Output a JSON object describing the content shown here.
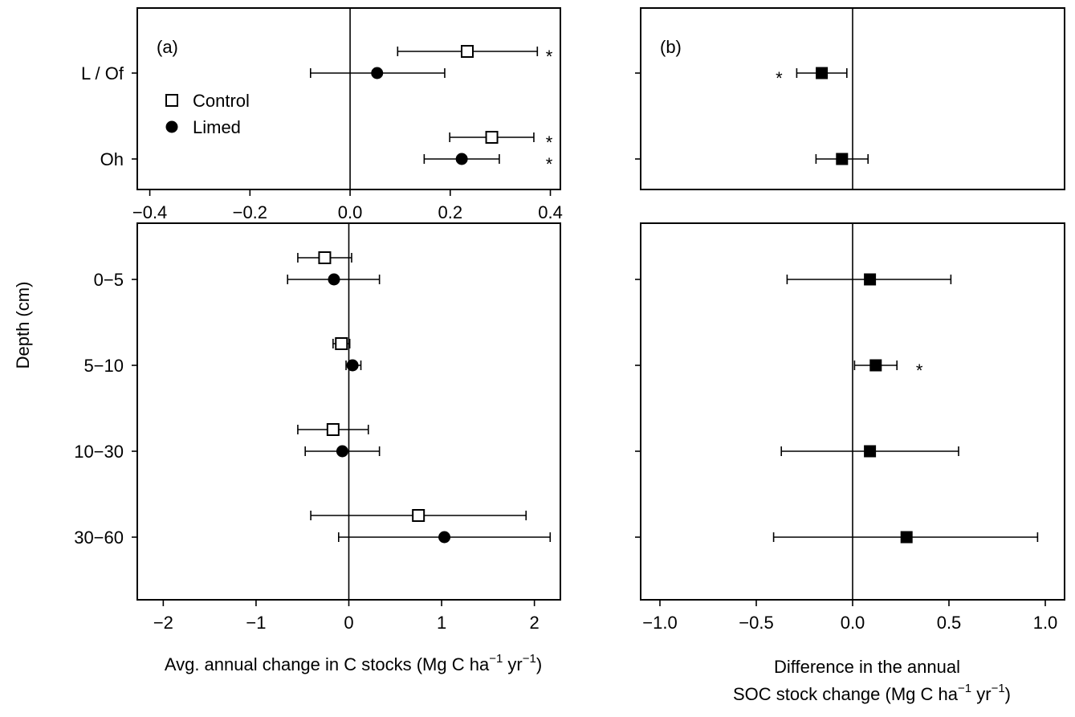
{
  "chart_data": [
    {
      "panel": "(a)",
      "type": "scatter",
      "subtype": "forest-plot",
      "position": "top-left",
      "categories": [
        "L / Of",
        "Oh"
      ],
      "xlim": [
        -0.425,
        0.42
      ],
      "xticks": [
        "−0.4",
        "−0.2",
        "0.0",
        "0.2",
        "0.4"
      ],
      "xtick_values": [
        -0.4,
        -0.2,
        0.0,
        0.2,
        0.4
      ],
      "legend": {
        "placement": "top-left",
        "entries": [
          "Control",
          "Limed"
        ]
      },
      "series": [
        {
          "name": "Control",
          "marker": "open-square",
          "points": [
            {
              "category": "L / Of",
              "value": 0.234,
              "low": 0.095,
              "high": 0.374,
              "sig": "*"
            },
            {
              "category": "Oh",
              "value": 0.283,
              "low": 0.199,
              "high": 0.367,
              "sig": "*"
            }
          ]
        },
        {
          "name": "Limed",
          "marker": "filled-circle",
          "points": [
            {
              "category": "L / Of",
              "value": 0.054,
              "low": -0.079,
              "high": 0.189,
              "sig": ""
            },
            {
              "category": "Oh",
              "value": 0.223,
              "low": 0.148,
              "high": 0.298,
              "sig": "*"
            }
          ]
        }
      ]
    },
    {
      "panel": "(b)",
      "type": "scatter",
      "subtype": "forest-plot",
      "position": "top-right",
      "categories": [
        "L / Of",
        "Oh"
      ],
      "xlim": [
        -1.1,
        1.1
      ],
      "series": [
        {
          "name": "Difference",
          "marker": "filled-square",
          "points": [
            {
              "category": "L / Of",
              "value": -0.16,
              "low": -0.29,
              "high": -0.03,
              "sig": "*",
              "sig_side": "left"
            },
            {
              "category": "Oh",
              "value": -0.055,
              "low": -0.19,
              "high": 0.08,
              "sig": ""
            }
          ]
        }
      ]
    },
    {
      "panel": "(a)",
      "type": "scatter",
      "subtype": "forest-plot",
      "position": "bottom-left",
      "ylabel": "Depth (cm)",
      "xlabel_parts": {
        "before": "Avg. annual change in C  stocks (Mg C ha",
        "sup1": "−1",
        "mid": " yr",
        "sup2": "−1",
        "after": ")"
      },
      "categories": [
        "0−5",
        "5−10",
        "10−30",
        "30−60"
      ],
      "xlim": [
        -2.28,
        2.28
      ],
      "xticks": [
        "−2",
        "−1",
        "0",
        "1",
        "2"
      ],
      "xtick_values": [
        -2,
        -1,
        0,
        1,
        2
      ],
      "series": [
        {
          "name": "Control",
          "marker": "open-square",
          "points": [
            {
              "category": "0−5",
              "value": -0.26,
              "low": -0.55,
              "high": 0.03
            },
            {
              "category": "5−10",
              "value": -0.08,
              "low": -0.17,
              "high": 0.01
            },
            {
              "category": "10−30",
              "value": -0.17,
              "low": -0.55,
              "high": 0.21
            },
            {
              "category": "30−60",
              "value": 0.75,
              "low": -0.41,
              "high": 1.91
            }
          ]
        },
        {
          "name": "Limed",
          "marker": "filled-circle",
          "points": [
            {
              "category": "0−5",
              "value": -0.16,
              "low": -0.66,
              "high": 0.33
            },
            {
              "category": "5−10",
              "value": 0.04,
              "low": -0.03,
              "high": 0.13
            },
            {
              "category": "10−30",
              "value": -0.07,
              "low": -0.47,
              "high": 0.33
            },
            {
              "category": "30−60",
              "value": 1.03,
              "low": -0.11,
              "high": 2.17
            }
          ]
        }
      ]
    },
    {
      "panel": "(b)",
      "type": "scatter",
      "subtype": "forest-plot",
      "position": "bottom-right",
      "xlabel_parts": {
        "line1": "Difference in the annual",
        "before": "SOC stock change (Mg C ha",
        "sup1": "−1",
        "mid": " yr",
        "sup2": "−1",
        "after": ")"
      },
      "categories": [
        "0−5",
        "5−10",
        "10−30",
        "30−60"
      ],
      "xlim": [
        -1.1,
        1.1
      ],
      "xticks": [
        "−1.0",
        "−0.5",
        "0.0",
        "0.5",
        "1.0"
      ],
      "xtick_values": [
        -1.0,
        -0.5,
        0.0,
        0.5,
        1.0
      ],
      "series": [
        {
          "name": "Difference",
          "marker": "filled-square",
          "points": [
            {
              "category": "0−5",
              "value": 0.09,
              "low": -0.34,
              "high": 0.51,
              "sig": ""
            },
            {
              "category": "5−10",
              "value": 0.12,
              "low": 0.01,
              "high": 0.23,
              "sig": "*",
              "sig_side": "right"
            },
            {
              "category": "10−30",
              "value": 0.09,
              "low": -0.37,
              "high": 0.55,
              "sig": ""
            },
            {
              "category": "30−60",
              "value": 0.28,
              "low": -0.41,
              "high": 0.96,
              "sig": ""
            }
          ]
        }
      ]
    }
  ]
}
